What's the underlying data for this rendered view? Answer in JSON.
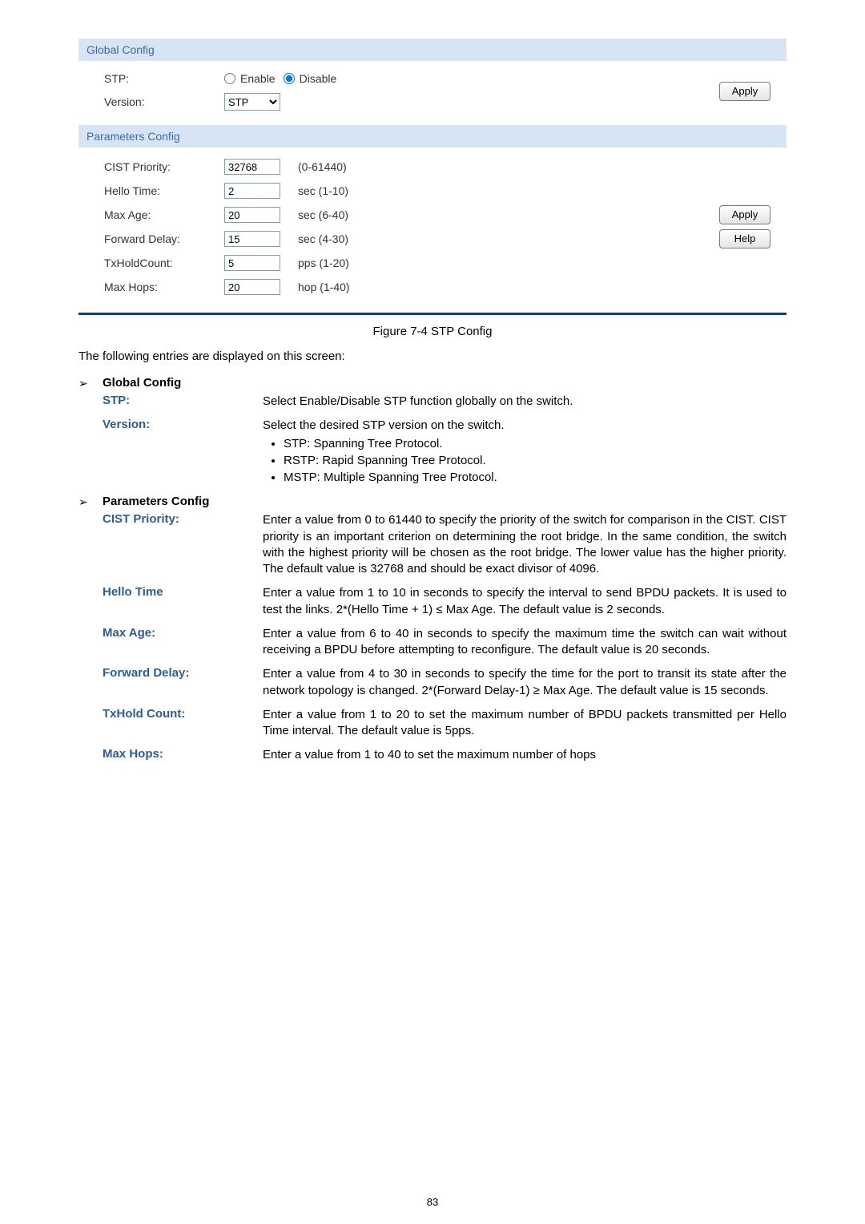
{
  "globalConfig": {
    "header": "Global Config",
    "stp": {
      "label": "STP:",
      "enable": "Enable",
      "disable": "Disable",
      "selected": "disable"
    },
    "version": {
      "label": "Version:",
      "options": [
        "STP"
      ],
      "selected": "STP"
    },
    "apply": "Apply"
  },
  "paramsConfig": {
    "header": "Parameters Config",
    "rows": [
      {
        "label": "CIST Priority:",
        "value": "32768",
        "hint": "(0-61440)"
      },
      {
        "label": "Hello Time:",
        "value": "2",
        "hint": "sec (1-10)"
      },
      {
        "label": "Max Age:",
        "value": "20",
        "hint": "sec (6-40)"
      },
      {
        "label": "Forward Delay:",
        "value": "15",
        "hint": "sec (4-30)"
      },
      {
        "label": "TxHoldCount:",
        "value": "5",
        "hint": "pps (1-20)"
      },
      {
        "label": "Max Hops:",
        "value": "20",
        "hint": "hop (1-40)"
      }
    ],
    "apply": "Apply",
    "help": "Help"
  },
  "figureCaption": "Figure 7-4 STP Config",
  "introText": "The following entries are displayed on this screen:",
  "sections": [
    {
      "heading": "Global Config",
      "items": [
        {
          "term": "STP:",
          "desc": "Select Enable/Disable STP function globally on the switch."
        },
        {
          "term": "Version:",
          "desc": "Select the desired STP version on the switch.",
          "bullets": [
            "STP: Spanning Tree Protocol.",
            "RSTP: Rapid Spanning Tree Protocol.",
            "MSTP: Multiple Spanning Tree Protocol."
          ]
        }
      ]
    },
    {
      "heading": "Parameters Config",
      "items": [
        {
          "term": "CIST Priority:",
          "desc": "Enter a value from 0 to 61440 to specify the priority of the switch for comparison in the CIST. CIST priority is an important criterion on determining the root bridge. In the same condition, the switch with the highest priority will be chosen as the root bridge. The lower value has the higher priority. The default value is 32768 and should be exact divisor of 4096."
        },
        {
          "term": "Hello Time",
          "desc": "Enter a value from 1 to 10 in seconds to specify the interval to send BPDU packets. It is used to test the links. 2*(Hello Time + 1) ≤ Max Age. The default value is 2 seconds."
        },
        {
          "term": "Max Age:",
          "desc": "Enter a value from 6 to 40 in seconds to specify the maximum time the switch can wait without receiving a BPDU before attempting to reconfigure. The default value is 20 seconds."
        },
        {
          "term": "Forward Delay:",
          "desc": "Enter a value from 4 to 30 in seconds to specify the time for the port to transit its state after the network topology is changed. 2*(Forward Delay-1) ≥ Max Age. The default value is 15 seconds."
        },
        {
          "term": "TxHold Count:",
          "desc": "Enter a value from 1 to 20 to set the maximum number of BPDU packets transmitted per Hello Time interval. The default value is 5pps."
        },
        {
          "term": "Max Hops:",
          "desc": "Enter a value from 1 to 40 to set the maximum number of hops"
        }
      ]
    }
  ],
  "pageNumber": "83",
  "colors": {
    "sectionHeaderBg": "#d7e4f5",
    "sectionHeaderFg": "#3a6ea5",
    "dividerColor": "#133e6b",
    "termColor": "#2e5c9a",
    "inputBorder": "#7f9db9"
  }
}
